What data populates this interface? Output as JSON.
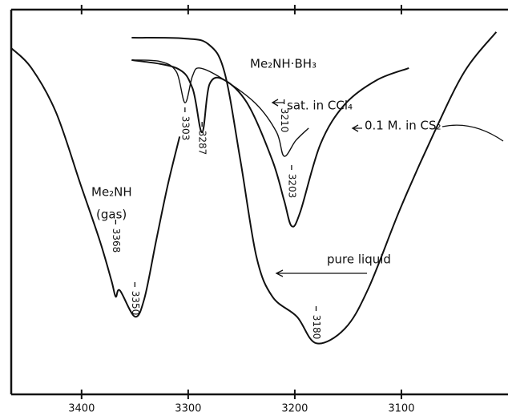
{
  "chart_data": {
    "type": "line",
    "xlim": [
      3466,
      3000
    ],
    "ylim": [
      0,
      100
    ],
    "xticks": [
      3400,
      3300,
      3200,
      3100
    ],
    "color": "#111111",
    "series": [
      {
        "name": "Me₂NH",
        "x": [
          3466,
          3447,
          3424,
          3401,
          3383,
          3372,
          3368,
          3364,
          3350,
          3341,
          3330,
          3319,
          3308
        ],
        "values": [
          90,
          84.8,
          73.3,
          54.6,
          40,
          29.6,
          25.4,
          27,
          20.2,
          25,
          40,
          54.6,
          67
        ]
      },
      {
        "name": "sat. in CCl₄",
        "x": [
          3353,
          3326,
          3311,
          3303,
          3296,
          3289,
          3266,
          3236,
          3217,
          3210,
          3199,
          3187
        ],
        "values": [
          86.9,
          86.5,
          83.8,
          75.8,
          82.7,
          84.8,
          81.7,
          75.4,
          68.1,
          61.9,
          66,
          69.2
        ]
      },
      {
        "name": "0.1 M. in CS₂",
        "x": [
          3353,
          3311,
          3296,
          3287,
          3280,
          3266,
          3244,
          3221,
          3210,
          3203,
          3195,
          3176,
          3153,
          3123,
          3093
        ],
        "values": [
          86.9,
          84.8,
          79.6,
          68.1,
          80.6,
          81.7,
          75.4,
          60.8,
          50.4,
          43.75,
          47.3,
          65,
          75.4,
          81.7,
          84.8
        ]
      },
      {
        "name": "pure liquid",
        "x": [
          3353,
          3304,
          3281,
          3266,
          3251,
          3236,
          3221,
          3198,
          3180,
          3153,
          3131,
          3101,
          3071,
          3041,
          3011
        ],
        "values": [
          92.7,
          92.5,
          91,
          83.8,
          60.8,
          35.8,
          25.4,
          20.2,
          13.3,
          17.1,
          27.5,
          48.3,
          67,
          83.8,
          94.2
        ]
      }
    ],
    "annotations": [
      "Me₂NH·BH₃",
      "(gas)"
    ],
    "peak_labels": [
      3368,
      3350,
      3303,
      3287,
      3210,
      3203,
      3180
    ]
  }
}
